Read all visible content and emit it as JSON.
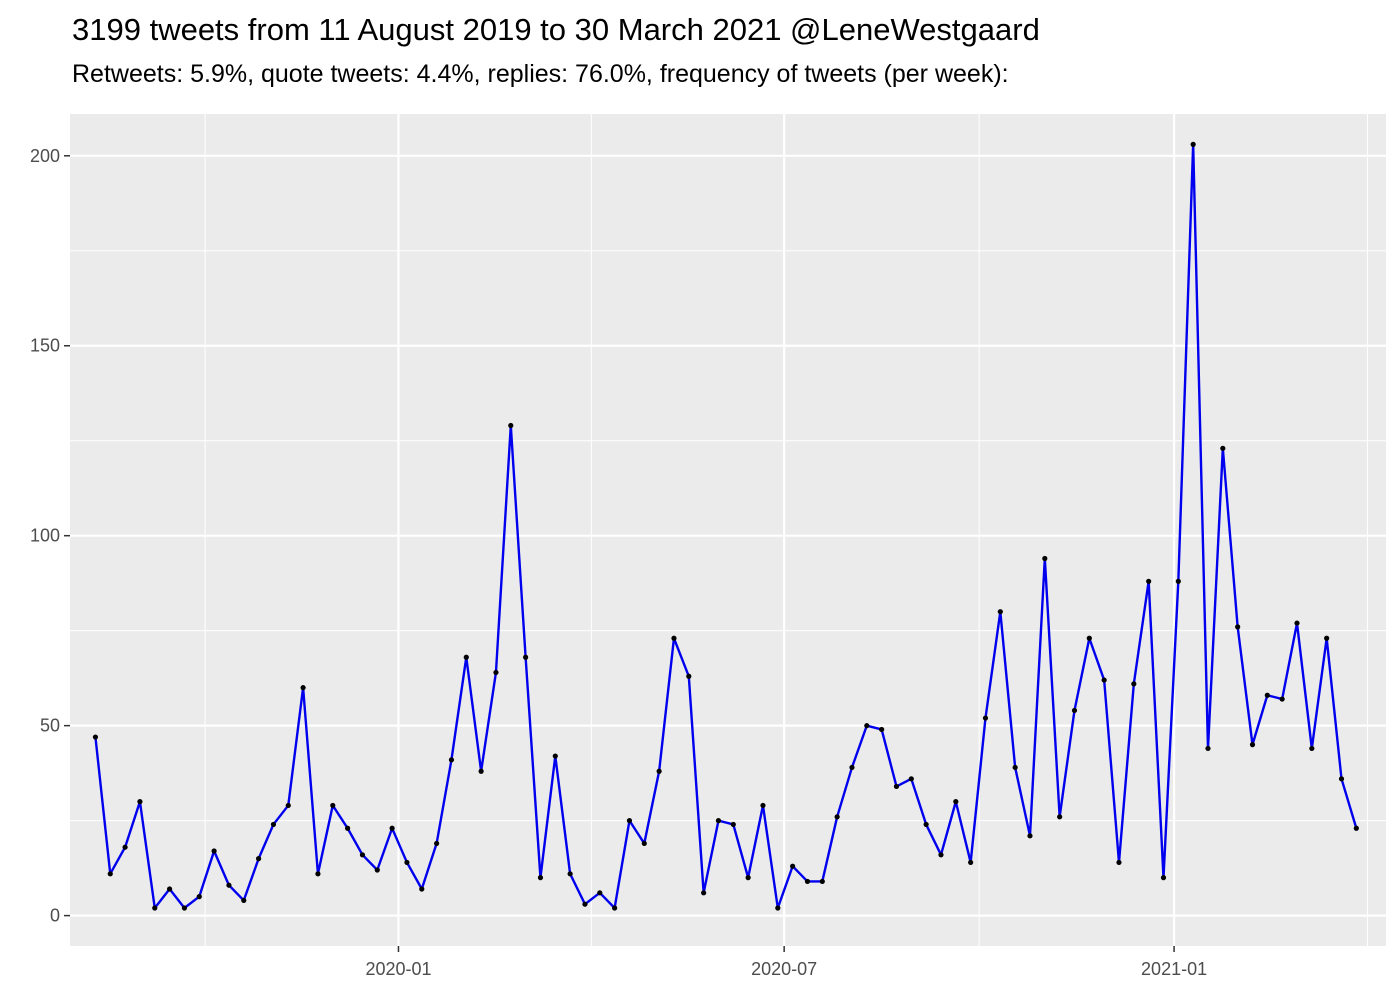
{
  "chart_data": {
    "type": "line",
    "title": "3199 tweets from 11 August 2019 to 30 March 2021 @LeneWestgaard",
    "subtitle": "Retweets: 5.9%, quote tweets: 4.4%, replies: 76.0%, frequency of tweets (per week):",
    "xlabel": "",
    "ylabel": "",
    "x_type": "date",
    "xlim": [
      "2019-07-30",
      "2021-04-11"
    ],
    "ylim": [
      -8,
      211
    ],
    "x_ticks": [
      "2020-01-01",
      "2020-07-01",
      "2021-01-01"
    ],
    "x_tick_labels": [
      "2020-01",
      "2020-07",
      "2021-01"
    ],
    "y_ticks": [
      0,
      50,
      100,
      150,
      200
    ],
    "y_tick_labels": [
      "0",
      "50",
      "100",
      "150",
      "200"
    ],
    "grid": true,
    "line_color": "#0000ee",
    "point_color": "#000000",
    "panel_color": "#ebebeb",
    "series": [
      {
        "x": [
          "2019-08-11",
          "2019-08-18",
          "2019-08-25",
          "2019-09-01",
          "2019-09-08",
          "2019-09-15",
          "2019-09-22",
          "2019-09-29",
          "2019-10-06",
          "2019-10-13",
          "2019-10-20",
          "2019-10-27",
          "2019-11-03",
          "2019-11-10",
          "2019-11-17",
          "2019-11-24",
          "2019-12-01",
          "2019-12-08",
          "2019-12-15",
          "2019-12-22",
          "2019-12-29",
          "2020-01-05",
          "2020-01-12",
          "2020-01-19",
          "2020-01-26",
          "2020-02-02",
          "2020-02-09",
          "2020-02-16",
          "2020-02-23",
          "2020-03-01",
          "2020-03-08",
          "2020-03-15",
          "2020-03-22",
          "2020-03-29",
          "2020-04-05",
          "2020-04-12",
          "2020-04-19",
          "2020-04-26",
          "2020-05-03",
          "2020-05-10",
          "2020-05-17",
          "2020-05-24",
          "2020-05-31",
          "2020-06-07",
          "2020-06-14",
          "2020-06-21",
          "2020-06-28",
          "2020-07-05",
          "2020-07-12",
          "2020-07-19",
          "2020-07-26",
          "2020-08-02",
          "2020-08-09",
          "2020-08-16",
          "2020-08-23",
          "2020-08-30",
          "2020-09-06",
          "2020-09-13",
          "2020-09-20",
          "2020-09-27",
          "2020-10-04",
          "2020-10-11",
          "2020-10-18",
          "2020-10-25",
          "2020-11-01",
          "2020-11-08",
          "2020-11-15",
          "2020-11-22",
          "2020-11-29",
          "2020-12-06",
          "2020-12-13",
          "2020-12-20",
          "2020-12-27",
          "2021-01-03",
          "2021-01-10",
          "2021-01-17",
          "2021-01-24",
          "2021-01-31",
          "2021-02-07",
          "2021-02-14",
          "2021-02-21",
          "2021-02-28",
          "2021-03-07",
          "2021-03-14",
          "2021-03-21",
          "2021-03-28"
        ],
        "values": [
          47,
          11,
          18,
          30,
          2,
          7,
          2,
          5,
          17,
          8,
          4,
          15,
          24,
          29,
          60,
          11,
          29,
          23,
          16,
          12,
          23,
          14,
          7,
          19,
          41,
          68,
          38,
          64,
          129,
          68,
          10,
          42,
          11,
          3,
          6,
          2,
          25,
          19,
          38,
          73,
          63,
          6,
          25,
          24,
          10,
          29,
          2,
          13,
          9,
          9,
          26,
          39,
          50,
          49,
          34,
          36,
          24,
          16,
          30,
          14,
          52,
          80,
          39,
          21,
          94,
          26,
          54,
          73,
          62,
          14,
          61,
          88,
          10,
          88,
          203,
          44,
          123,
          76,
          45,
          58,
          57,
          77,
          44,
          73,
          36,
          23
        ]
      }
    ]
  }
}
